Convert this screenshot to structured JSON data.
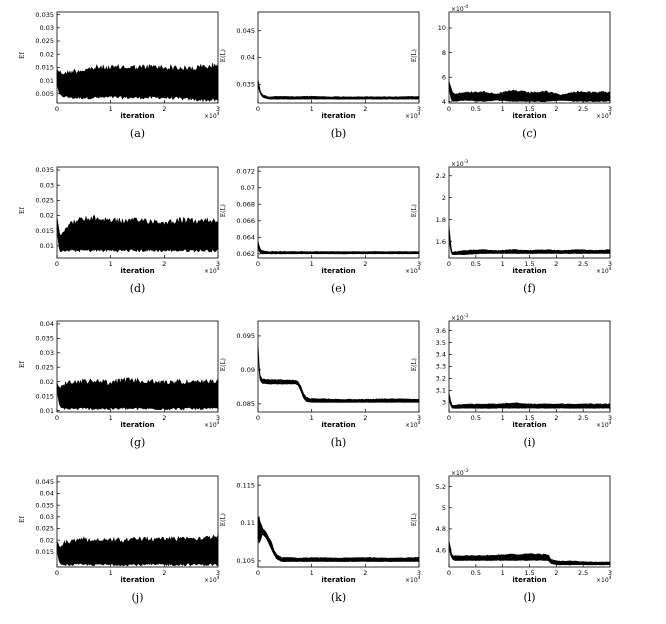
{
  "figure": {
    "x_axis_label": "iteration",
    "x_scale_base": "×",
    "x_scale_exp": "10",
    "x_scale_pow": "4"
  },
  "chart_data": [
    {
      "id": "a",
      "caption": "(a)",
      "type": "area",
      "ylabel": "Ef",
      "xlim": [
        0,
        3
      ],
      "ylim": [
        0.0015,
        0.036
      ],
      "xticks": [
        "0",
        "1",
        "2",
        "3"
      ],
      "yticks": [
        {
          "v": 0.005,
          "t": "0.005"
        },
        {
          "v": 0.01,
          "t": "0.01"
        },
        {
          "v": 0.015,
          "t": "0.015"
        },
        {
          "v": 0.02,
          "t": "0.02"
        },
        {
          "v": 0.025,
          "t": "0.025"
        },
        {
          "v": 0.03,
          "t": "0.03"
        },
        {
          "v": 0.035,
          "t": "0.035"
        }
      ],
      "yexp": "",
      "series": [
        {
          "x": [
            0,
            0.05,
            0.15,
            0.3,
            0.5,
            0.75,
            1,
            1.25,
            1.5,
            1.75,
            2,
            2.2,
            2.4,
            2.6,
            2.8,
            3
          ],
          "lo": [
            0.008,
            0.004,
            0.0035,
            0.003,
            0.003,
            0.003,
            0.0032,
            0.003,
            0.003,
            0.003,
            0.003,
            0.0028,
            0.0025,
            0.0022,
            0.002,
            0.002
          ],
          "hi": [
            0.015,
            0.014,
            0.0135,
            0.0145,
            0.015,
            0.016,
            0.0158,
            0.0162,
            0.016,
            0.0163,
            0.016,
            0.016,
            0.0155,
            0.016,
            0.0165,
            0.017
          ]
        }
      ]
    },
    {
      "id": "b",
      "caption": "(b)",
      "type": "line",
      "ylabel": "E(L)",
      "xlim": [
        0,
        3
      ],
      "ylim": [
        0.0315,
        0.0485
      ],
      "xticks": [
        "0",
        "1",
        "2",
        "3"
      ],
      "yticks": [
        {
          "v": 0.035,
          "t": "0.035"
        },
        {
          "v": 0.04,
          "t": "0.04"
        },
        {
          "v": 0.045,
          "t": "0.045"
        }
      ],
      "yexp": "",
      "series": [
        {
          "x": [
            0,
            0.05,
            0.1,
            0.2,
            0.4,
            0.7,
            1,
            1.3,
            1.6,
            2,
            2.3,
            2.6,
            3
          ],
          "lo": [
            0.0345,
            0.033,
            0.0325,
            0.0322,
            0.0322,
            0.0322,
            0.0322,
            0.0322,
            0.0322,
            0.0322,
            0.0322,
            0.0322,
            0.0322
          ],
          "hi": [
            0.036,
            0.0335,
            0.033,
            0.0327,
            0.0328,
            0.0327,
            0.0328,
            0.0327,
            0.0327,
            0.0327,
            0.0327,
            0.0327,
            0.0328
          ]
        }
      ]
    },
    {
      "id": "c",
      "caption": "(c)",
      "type": "line",
      "ylabel": "E(L)",
      "xlim": [
        0,
        3
      ],
      "ylim": [
        3.9,
        11.3
      ],
      "xticks": [
        "0",
        "0.5",
        "1",
        "1.5",
        "2",
        "2.5",
        "3"
      ],
      "yticks": [
        {
          "v": 4,
          "t": "4"
        },
        {
          "v": 6,
          "t": "6"
        },
        {
          "v": 8,
          "t": "8"
        },
        {
          "v": 10,
          "t": "10"
        }
      ],
      "yexp": "-4",
      "series": [
        {
          "x": [
            0,
            0.05,
            0.1,
            0.3,
            0.6,
            0.9,
            1.2,
            1.5,
            1.8,
            2.1,
            2.4,
            2.7,
            3
          ],
          "lo": [
            5.0,
            4.0,
            4.0,
            4.1,
            4.0,
            4.1,
            4.0,
            4.0,
            4.0,
            4.1,
            4.0,
            4.0,
            4.0
          ],
          "hi": [
            5.8,
            5.0,
            4.7,
            4.8,
            4.9,
            4.7,
            5.0,
            4.8,
            4.9,
            4.6,
            4.9,
            4.8,
            4.9
          ]
        }
      ]
    },
    {
      "id": "d",
      "caption": "(d)",
      "type": "area",
      "ylabel": "Ef",
      "xlim": [
        0,
        3
      ],
      "ylim": [
        0.006,
        0.036
      ],
      "xticks": [
        "0",
        "1",
        "2",
        "3"
      ],
      "yticks": [
        {
          "v": 0.01,
          "t": "0.01"
        },
        {
          "v": 0.015,
          "t": "0.015"
        },
        {
          "v": 0.02,
          "t": "0.02"
        },
        {
          "v": 0.025,
          "t": "0.025"
        },
        {
          "v": 0.03,
          "t": "0.03"
        },
        {
          "v": 0.035,
          "t": "0.035"
        }
      ],
      "yexp": "",
      "series": [
        {
          "x": [
            0,
            0.05,
            0.1,
            0.2,
            0.4,
            0.7,
            1,
            1.3,
            1.6,
            2,
            2.3,
            2.6,
            3
          ],
          "lo": [
            0.015,
            0.008,
            0.008,
            0.008,
            0.008,
            0.008,
            0.008,
            0.008,
            0.008,
            0.008,
            0.008,
            0.008,
            0.008
          ],
          "hi": [
            0.02,
            0.014,
            0.015,
            0.0175,
            0.0195,
            0.02,
            0.0195,
            0.019,
            0.0195,
            0.0185,
            0.0195,
            0.019,
            0.0195
          ]
        }
      ]
    },
    {
      "id": "e",
      "caption": "(e)",
      "type": "line",
      "ylabel": "E(L)",
      "xlim": [
        0,
        3
      ],
      "ylim": [
        0.0615,
        0.0725
      ],
      "xticks": [
        "0",
        "1",
        "2",
        "3"
      ],
      "yticks": [
        {
          "v": 0.062,
          "t": "0.062"
        },
        {
          "v": 0.064,
          "t": "0.064"
        },
        {
          "v": 0.066,
          "t": "0.066"
        },
        {
          "v": 0.068,
          "t": "0.068"
        },
        {
          "v": 0.07,
          "t": "0.07"
        },
        {
          "v": 0.072,
          "t": "0.072"
        }
      ],
      "yexp": "",
      "series": [
        {
          "x": [
            0,
            0.05,
            0.1,
            0.2,
            0.5,
            1,
            1.5,
            2,
            2.5,
            3
          ],
          "lo": [
            0.0625,
            0.062,
            0.062,
            0.062,
            0.062,
            0.062,
            0.062,
            0.062,
            0.062,
            0.062
          ],
          "hi": [
            0.0635,
            0.0625,
            0.0624,
            0.0623,
            0.0623,
            0.0623,
            0.0623,
            0.0623,
            0.0623,
            0.0623
          ]
        }
      ]
    },
    {
      "id": "f",
      "caption": "(f)",
      "type": "line",
      "ylabel": "E(L)",
      "xlim": [
        0,
        3
      ],
      "ylim": [
        1.45,
        2.28
      ],
      "xticks": [
        "0",
        "0.5",
        "1",
        "1.5",
        "2",
        "2.5",
        "3"
      ],
      "yticks": [
        {
          "v": 1.6,
          "t": "1.6"
        },
        {
          "v": 1.8,
          "t": "1.8"
        },
        {
          "v": 2,
          "t": "2"
        },
        {
          "v": 2.2,
          "t": "2.2"
        }
      ],
      "yexp": "-3",
      "series": [
        {
          "x": [
            0,
            0.05,
            0.1,
            0.3,
            0.6,
            0.9,
            1.2,
            1.5,
            1.8,
            2.1,
            2.4,
            2.7,
            3
          ],
          "lo": [
            1.6,
            1.48,
            1.48,
            1.48,
            1.49,
            1.49,
            1.49,
            1.49,
            1.49,
            1.49,
            1.49,
            1.49,
            1.49
          ],
          "hi": [
            1.75,
            1.5,
            1.51,
            1.52,
            1.53,
            1.52,
            1.53,
            1.52,
            1.53,
            1.52,
            1.53,
            1.52,
            1.53
          ]
        }
      ]
    },
    {
      "id": "g",
      "caption": "(g)",
      "type": "area",
      "ylabel": "Ef",
      "xlim": [
        0,
        3
      ],
      "ylim": [
        0.0095,
        0.041
      ],
      "xticks": [
        "0",
        "1",
        "2",
        "3"
      ],
      "yticks": [
        {
          "v": 0.01,
          "t": "0.01"
        },
        {
          "v": 0.015,
          "t": "0.015"
        },
        {
          "v": 0.02,
          "t": "0.02"
        },
        {
          "v": 0.025,
          "t": "0.025"
        },
        {
          "v": 0.03,
          "t": "0.03"
        },
        {
          "v": 0.035,
          "t": "0.035"
        },
        {
          "v": 0.04,
          "t": "0.04"
        }
      ],
      "yexp": "",
      "series": [
        {
          "x": [
            0,
            0.05,
            0.1,
            0.2,
            0.5,
            0.8,
            1,
            1.3,
            1.6,
            2,
            2.3,
            2.6,
            3
          ],
          "lo": [
            0.017,
            0.011,
            0.0105,
            0.0102,
            0.0102,
            0.0102,
            0.0102,
            0.0102,
            0.0102,
            0.0102,
            0.0102,
            0.0102,
            0.0102
          ],
          "hi": [
            0.02,
            0.018,
            0.0195,
            0.0205,
            0.021,
            0.021,
            0.0205,
            0.0215,
            0.021,
            0.0205,
            0.021,
            0.0205,
            0.021
          ]
        }
      ]
    },
    {
      "id": "h",
      "caption": "(h)",
      "type": "line",
      "ylabel": "E(L)",
      "xlim": [
        0,
        3
      ],
      "ylim": [
        0.0838,
        0.0972
      ],
      "xticks": [
        "0",
        "1",
        "2",
        "3"
      ],
      "yticks": [
        {
          "v": 0.085,
          "t": "0.085"
        },
        {
          "v": 0.09,
          "t": "0.09"
        },
        {
          "v": 0.095,
          "t": "0.095"
        }
      ],
      "yexp": "",
      "series": [
        {
          "x": [
            0,
            0.03,
            0.08,
            0.2,
            0.4,
            0.7,
            0.75,
            0.8,
            0.85,
            0.9,
            1.0,
            1.2,
            1.5,
            2,
            2.5,
            3
          ],
          "lo": [
            0.0925,
            0.0885,
            0.088,
            0.0879,
            0.0879,
            0.0879,
            0.0877,
            0.0868,
            0.0858,
            0.0853,
            0.0852,
            0.0852,
            0.0852,
            0.0852,
            0.0852,
            0.0852
          ],
          "hi": [
            0.094,
            0.0895,
            0.0887,
            0.0886,
            0.0886,
            0.0885,
            0.0883,
            0.0876,
            0.0866,
            0.086,
            0.0858,
            0.0858,
            0.0857,
            0.0857,
            0.0858,
            0.0857
          ]
        }
      ]
    },
    {
      "id": "i",
      "caption": "(i)",
      "type": "line",
      "ylabel": "E(L)",
      "xlim": [
        0,
        3
      ],
      "ylim": [
        2.92,
        3.68
      ],
      "xticks": [
        "0",
        "0.5",
        "1",
        "1.5",
        "2",
        "2.5",
        "3"
      ],
      "yticks": [
        {
          "v": 3,
          "t": "3"
        },
        {
          "v": 3.1,
          "t": "3.1"
        },
        {
          "v": 3.2,
          "t": "3.2"
        },
        {
          "v": 3.3,
          "t": "3.3"
        },
        {
          "v": 3.4,
          "t": "3.4"
        },
        {
          "v": 3.5,
          "t": "3.5"
        },
        {
          "v": 3.6,
          "t": "3.6"
        }
      ],
      "yexp": "-3",
      "series": [
        {
          "x": [
            0,
            0.05,
            0.1,
            0.3,
            0.6,
            0.9,
            1.2,
            1.5,
            1.8,
            2.1,
            2.4,
            2.7,
            3
          ],
          "lo": [
            3.02,
            2.95,
            2.95,
            2.95,
            2.95,
            2.95,
            2.95,
            2.95,
            2.95,
            2.95,
            2.95,
            2.95,
            2.95
          ],
          "hi": [
            3.08,
            2.98,
            2.98,
            2.99,
            2.99,
            2.99,
            3.0,
            2.99,
            2.99,
            2.99,
            2.99,
            2.99,
            2.99
          ]
        }
      ]
    },
    {
      "id": "j",
      "caption": "(j)",
      "type": "area",
      "ylabel": "Ef",
      "xlim": [
        0,
        3
      ],
      "ylim": [
        0.0085,
        0.0475
      ],
      "xticks": [
        "0",
        "1",
        "2",
        "3"
      ],
      "yticks": [
        {
          "v": 0.015,
          "t": "0.015"
        },
        {
          "v": 0.02,
          "t": "0.02"
        },
        {
          "v": 0.025,
          "t": "0.025"
        },
        {
          "v": 0.03,
          "t": "0.03"
        },
        {
          "v": 0.035,
          "t": "0.035"
        },
        {
          "v": 0.04,
          "t": "0.04"
        },
        {
          "v": 0.045,
          "t": "0.045"
        }
      ],
      "yexp": "",
      "series": [
        {
          "x": [
            0,
            0.05,
            0.1,
            0.2,
            0.5,
            0.8,
            1,
            1.3,
            1.6,
            2,
            2.3,
            2.6,
            3
          ],
          "lo": [
            0.015,
            0.0095,
            0.0092,
            0.009,
            0.009,
            0.009,
            0.009,
            0.009,
            0.009,
            0.009,
            0.009,
            0.009,
            0.009
          ],
          "hi": [
            0.02,
            0.018,
            0.019,
            0.0205,
            0.0215,
            0.021,
            0.021,
            0.021,
            0.0215,
            0.0215,
            0.022,
            0.022,
            0.0225
          ]
        }
      ]
    },
    {
      "id": "k",
      "caption": "(k)",
      "type": "line",
      "ylabel": "E(L)",
      "xlim": [
        0,
        3
      ],
      "ylim": [
        0.1042,
        0.1162
      ],
      "xticks": [
        "0",
        "1",
        "2",
        "3"
      ],
      "yticks": [
        {
          "v": 0.105,
          "t": "0.105"
        },
        {
          "v": 0.11,
          "t": "0.11"
        },
        {
          "v": 0.115,
          "t": "0.115"
        }
      ],
      "yexp": "",
      "series": [
        {
          "x": [
            0,
            0.03,
            0.08,
            0.15,
            0.25,
            0.3,
            0.35,
            0.45,
            0.6,
            0.8,
            1,
            1.5,
            2,
            2.5,
            3
          ],
          "lo": [
            0.108,
            0.107,
            0.1085,
            0.108,
            0.1065,
            0.1058,
            0.1052,
            0.1049,
            0.1049,
            0.1049,
            0.1049,
            0.1049,
            0.1049,
            0.1049,
            0.1049
          ],
          "hi": [
            0.111,
            0.111,
            0.1095,
            0.1088,
            0.1075,
            0.1065,
            0.1058,
            0.1055,
            0.1055,
            0.1054,
            0.1055,
            0.1054,
            0.1055,
            0.1054,
            0.1055
          ]
        }
      ]
    },
    {
      "id": "l",
      "caption": "(l)",
      "type": "line",
      "ylabel": "E(L)",
      "xlim": [
        0,
        3
      ],
      "ylim": [
        4.44,
        5.3
      ],
      "xticks": [
        "0",
        "0.5",
        "1",
        "1.5",
        "2",
        "2.5",
        "3"
      ],
      "yticks": [
        {
          "v": 4.6,
          "t": "4.6"
        },
        {
          "v": 4.8,
          "t": "4.8"
        },
        {
          "v": 5,
          "t": "5"
        },
        {
          "v": 5.2,
          "t": "5.2"
        }
      ],
      "yexp": "-3",
      "series": [
        {
          "x": [
            0,
            0.05,
            0.1,
            0.5,
            1,
            1.5,
            1.85,
            1.9,
            2.0,
            2.3,
            2.6,
            3
          ],
          "lo": [
            4.6,
            4.52,
            4.5,
            4.5,
            4.5,
            4.5,
            4.5,
            4.47,
            4.46,
            4.46,
            4.46,
            4.46
          ],
          "hi": [
            4.7,
            4.56,
            4.55,
            4.55,
            4.56,
            4.57,
            4.56,
            4.52,
            4.5,
            4.5,
            4.49,
            4.49
          ]
        }
      ]
    }
  ]
}
